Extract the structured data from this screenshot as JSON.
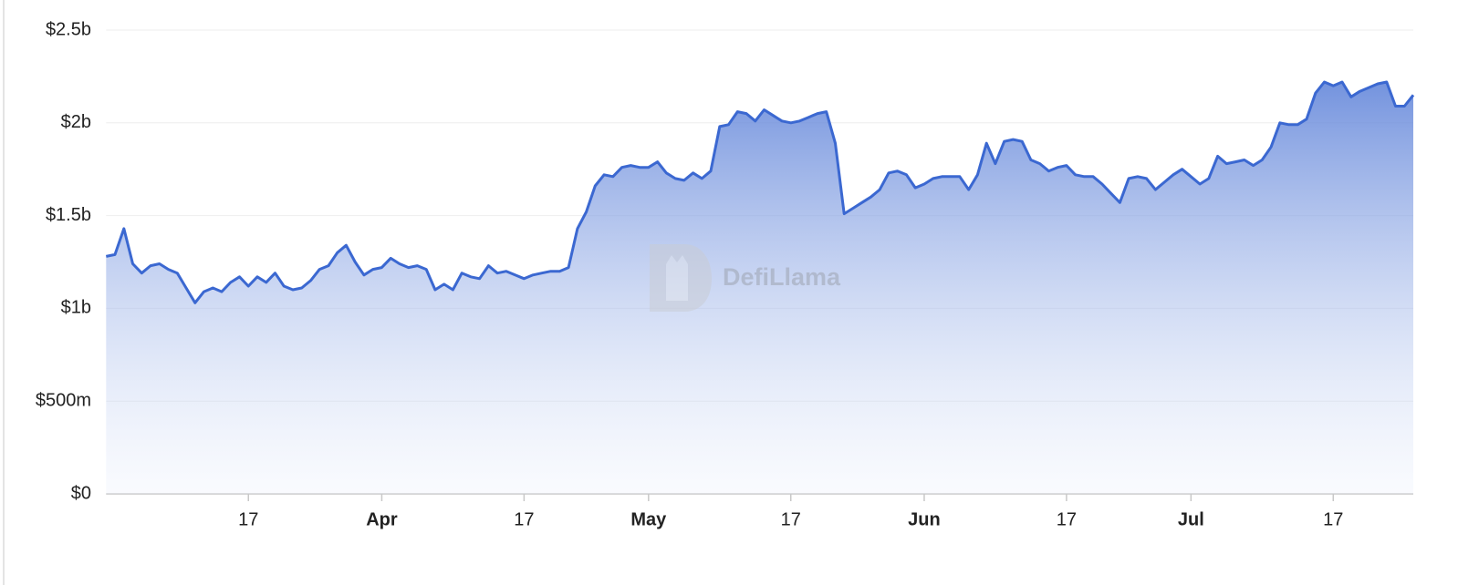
{
  "chart_data": {
    "type": "area",
    "watermark": "DefiLlama",
    "x": [
      "03-01",
      "03-02",
      "03-03",
      "03-04",
      "03-05",
      "03-06",
      "03-07",
      "03-08",
      "03-09",
      "03-10",
      "03-11",
      "03-12",
      "03-13",
      "03-14",
      "03-15",
      "03-16",
      "03-17",
      "03-18",
      "03-19",
      "03-20",
      "03-21",
      "03-22",
      "03-23",
      "03-24",
      "03-25",
      "03-26",
      "03-27",
      "03-28",
      "03-29",
      "03-30",
      "03-31",
      "04-01",
      "04-02",
      "04-03",
      "04-04",
      "04-05",
      "04-06",
      "04-07",
      "04-08",
      "04-09",
      "04-10",
      "04-11",
      "04-12",
      "04-13",
      "04-14",
      "04-15",
      "04-16",
      "04-17",
      "04-18",
      "04-19",
      "04-20",
      "04-21",
      "04-22",
      "04-23",
      "04-24",
      "04-25",
      "04-26",
      "04-27",
      "04-28",
      "04-29",
      "04-30",
      "05-01",
      "05-02",
      "05-03",
      "05-04",
      "05-05",
      "05-06",
      "05-07",
      "05-08",
      "05-09",
      "05-10",
      "05-11",
      "05-12",
      "05-13",
      "05-14",
      "05-15",
      "05-16",
      "05-17",
      "05-18",
      "05-19",
      "05-20",
      "05-21",
      "05-22",
      "05-23",
      "05-24",
      "05-25",
      "05-26",
      "05-27",
      "05-28",
      "05-29",
      "05-30",
      "05-31",
      "06-01",
      "06-02",
      "06-03",
      "06-04",
      "06-05",
      "06-06",
      "06-07",
      "06-08",
      "06-09",
      "06-10",
      "06-11",
      "06-12",
      "06-13",
      "06-14",
      "06-15",
      "06-16",
      "06-17",
      "06-18",
      "06-19",
      "06-20",
      "06-21",
      "06-22",
      "06-23",
      "06-24",
      "06-25",
      "06-26",
      "06-27",
      "06-28",
      "06-29",
      "06-30",
      "07-01",
      "07-02",
      "07-03",
      "07-04",
      "07-05",
      "07-06",
      "07-07",
      "07-08",
      "07-09",
      "07-10",
      "07-11",
      "07-12",
      "07-13",
      "07-14",
      "07-15",
      "07-16",
      "07-17",
      "07-18",
      "07-19",
      "07-20",
      "07-21",
      "07-22",
      "07-23",
      "07-24",
      "07-25",
      "07-26"
    ],
    "series": [
      {
        "color": "#3b68d1",
        "values": [
          1280000000.0,
          1290000000.0,
          1430000000.0,
          1240000000.0,
          1190000000.0,
          1230000000.0,
          1240000000.0,
          1210000000.0,
          1190000000.0,
          1110000000.0,
          1030000000.0,
          1090000000.0,
          1110000000.0,
          1090000000.0,
          1140000000.0,
          1170000000.0,
          1120000000.0,
          1170000000.0,
          1140000000.0,
          1190000000.0,
          1120000000.0,
          1100000000.0,
          1110000000.0,
          1150000000.0,
          1210000000.0,
          1230000000.0,
          1300000000.0,
          1340000000.0,
          1250000000.0,
          1180000000.0,
          1210000000.0,
          1220000000.0,
          1270000000.0,
          1240000000.0,
          1220000000.0,
          1230000000.0,
          1210000000.0,
          1100000000.0,
          1130000000.0,
          1100000000.0,
          1190000000.0,
          1170000000.0,
          1160000000.0,
          1230000000.0,
          1190000000.0,
          1200000000.0,
          1180000000.0,
          1160000000.0,
          1180000000.0,
          1190000000.0,
          1200000000.0,
          1200000000.0,
          1220000000.0,
          1430000000.0,
          1520000000.0,
          1660000000.0,
          1720000000.0,
          1710000000.0,
          1760000000.0,
          1770000000.0,
          1760000000.0,
          1760000000.0,
          1790000000.0,
          1730000000.0,
          1700000000.0,
          1690000000.0,
          1730000000.0,
          1700000000.0,
          1740000000.0,
          1980000000.0,
          1990000000.0,
          2060000000.0,
          2050000000.0,
          2010000000.0,
          2070000000.0,
          2040000000.0,
          2010000000.0,
          2000000000.0,
          2010000000.0,
          2030000000.0,
          2050000000.0,
          2060000000.0,
          1890000000.0,
          1510000000.0,
          1540000000.0,
          1570000000.0,
          1600000000.0,
          1640000000.0,
          1730000000.0,
          1740000000.0,
          1720000000.0,
          1650000000.0,
          1670000000.0,
          1700000000.0,
          1710000000.0,
          1710000000.0,
          1710000000.0,
          1640000000.0,
          1720000000.0,
          1890000000.0,
          1780000000.0,
          1900000000.0,
          1910000000.0,
          1900000000.0,
          1800000000.0,
          1780000000.0,
          1740000000.0,
          1760000000.0,
          1770000000.0,
          1720000000.0,
          1710000000.0,
          1710000000.0,
          1670000000.0,
          1620000000.0,
          1570000000.0,
          1700000000.0,
          1710000000.0,
          1700000000.0,
          1640000000.0,
          1680000000.0,
          1720000000.0,
          1750000000.0,
          1710000000.0,
          1670000000.0,
          1700000000.0,
          1820000000.0,
          1780000000.0,
          1790000000.0,
          1800000000.0,
          1770000000.0,
          1800000000.0,
          1870000000.0,
          2000000000.0,
          1990000000.0,
          1990000000.0,
          2020000000.0,
          2160000000.0,
          2220000000.0,
          2200000000.0,
          2220000000.0,
          2140000000.0,
          2170000000.0,
          2190000000.0,
          2210000000.0,
          2220000000.0,
          2090000000.0,
          2090000000.0,
          2150000000.0
        ]
      }
    ],
    "xlim": [
      "03-01",
      "07-26"
    ],
    "xticks": [
      {
        "value": "03-17",
        "label": "17"
      },
      {
        "value": "04-01",
        "label": "Apr"
      },
      {
        "value": "04-17",
        "label": "17"
      },
      {
        "value": "05-01",
        "label": "May"
      },
      {
        "value": "05-17",
        "label": "17"
      },
      {
        "value": "06-01",
        "label": "Jun"
      },
      {
        "value": "06-17",
        "label": "17"
      },
      {
        "value": "07-01",
        "label": "Jul"
      },
      {
        "value": "07-17",
        "label": "17"
      }
    ],
    "ylim": [
      0,
      2500000000
    ],
    "yticks": [
      {
        "value": 0,
        "label": "$0"
      },
      {
        "value": 500000000,
        "label": "$500m"
      },
      {
        "value": 1000000000,
        "label": "$1b"
      },
      {
        "value": 1500000000,
        "label": "$1.5b"
      },
      {
        "value": 2000000000,
        "label": "$2b"
      },
      {
        "value": 2500000000,
        "label": "$2.5b"
      }
    ],
    "grid": true
  }
}
